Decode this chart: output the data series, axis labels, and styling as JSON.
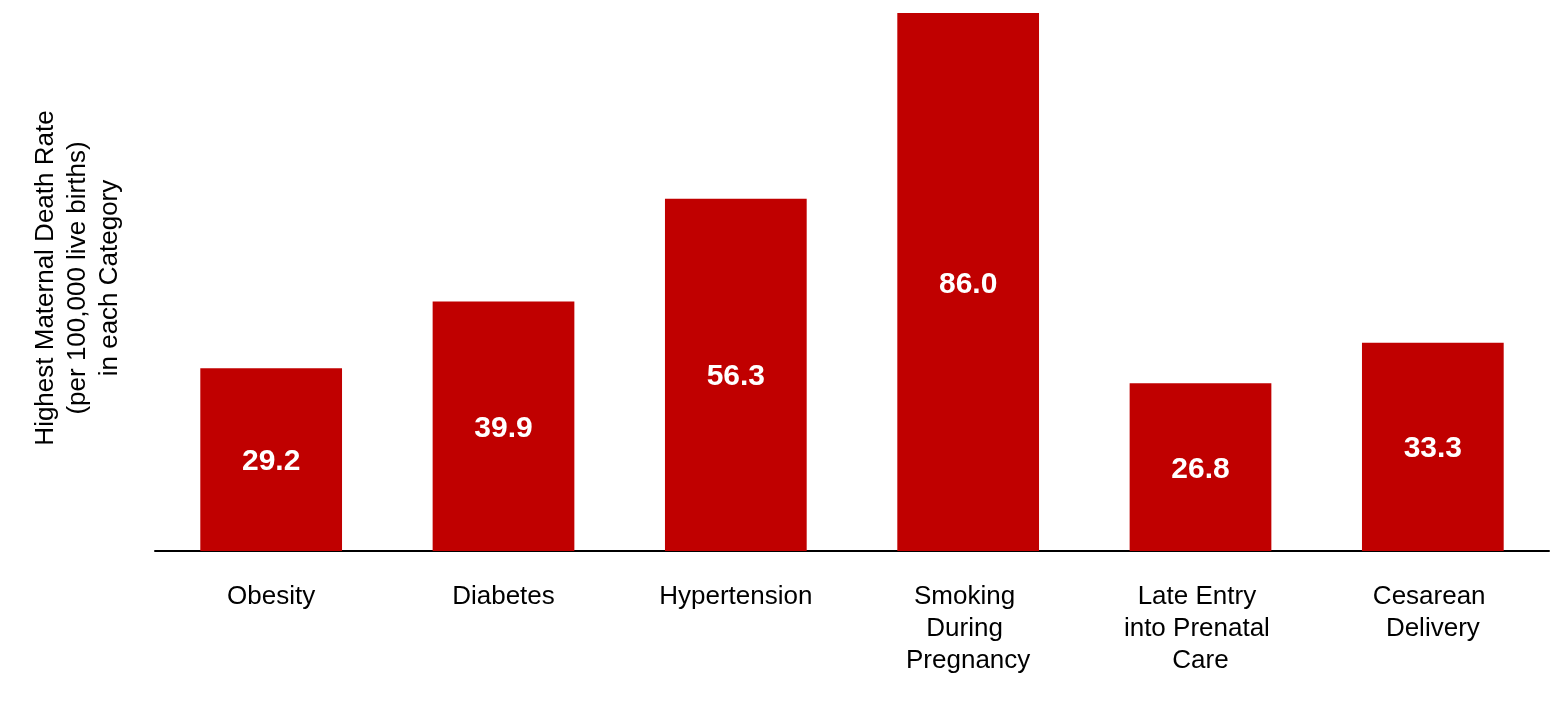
{
  "chart_data": {
    "type": "bar",
    "ylabel": "Highest Maternal Death Rate (per 100,000 live births) in each Category",
    "categories": [
      "Obesity",
      "Diabetes",
      "Hypertension",
      "Smoking During Pregnancy",
      "Late Entry into Prenatal Care",
      "Cesarean Delivery"
    ],
    "values": [
      29.2,
      39.9,
      56.3,
      86.0,
      26.8,
      33.3
    ],
    "value_labels": [
      "29.2",
      "39.9",
      "56.3",
      "86.0",
      "26.8",
      "33.3"
    ],
    "color": "#c00000"
  }
}
